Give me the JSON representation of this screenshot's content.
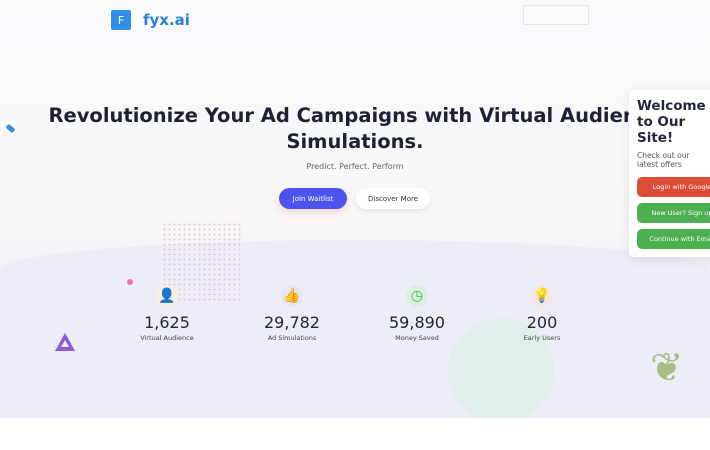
{
  "brand": {
    "logo_letter": "F",
    "name": "fyx.ai"
  },
  "hero": {
    "title": "Revolutionize Your Ad Campaigns with Virtual Audience Simulations.",
    "tagline": "Predict. Perfect. Perform",
    "join_label": "Join Waitlist",
    "discover_label": "Discover More"
  },
  "stats": [
    {
      "value": "1,625",
      "label": "Virtual Audience",
      "icon": "user-icon",
      "color": "#f0b84a"
    },
    {
      "value": "29,782",
      "label": "Ad Simulations",
      "icon": "thumbs-up-icon",
      "color": "#8a6be6"
    },
    {
      "value": "59,890",
      "label": "Money Saved",
      "icon": "clock-icon",
      "color": "#3cb84a"
    },
    {
      "value": "200",
      "label": "Early Users",
      "icon": "lightbulb-icon",
      "color": "#ee8a3c"
    }
  ],
  "welcome": {
    "title": "Welcome to Our Site!",
    "subtitle": "Check out our latest offers",
    "google_label": "Login with Google",
    "signup_label": "New User? Sign up",
    "email_label": "Continue with Email"
  }
}
